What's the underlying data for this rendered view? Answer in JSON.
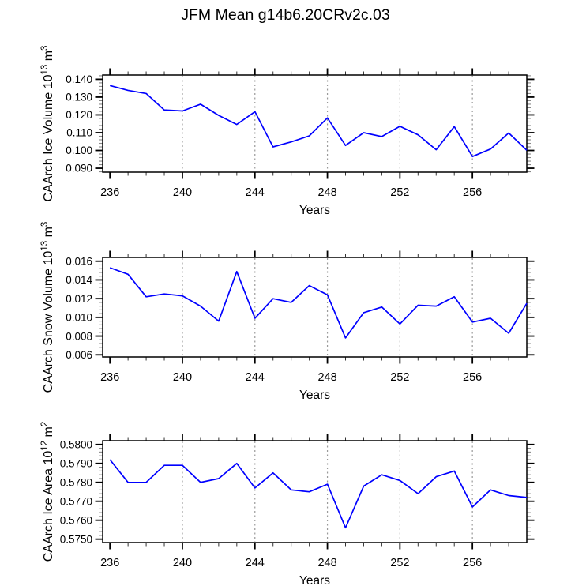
{
  "title": "JFM Mean g14b6.20CRv2c.03",
  "accent_color": "#0000ff",
  "grid_color": "#999999",
  "chart_data": [
    {
      "type": "line",
      "series_name": "CAArch Ice Volume",
      "ylabel": "CAArch Ice Volume 10¹³ m³",
      "ylabel_segments": [
        {
          "t": "CAArch Ice Volume 10"
        },
        {
          "t": "13",
          "sup": true
        },
        {
          "t": " m"
        },
        {
          "t": "3",
          "sup": true
        }
      ],
      "xlabel": "Years",
      "x": [
        236,
        237,
        238,
        239,
        240,
        241,
        242,
        243,
        244,
        245,
        246,
        247,
        248,
        249,
        250,
        251,
        252,
        253,
        254,
        255,
        256,
        257,
        258,
        259
      ],
      "values": [
        0.1365,
        0.1338,
        0.132,
        0.1228,
        0.1222,
        0.126,
        0.1197,
        0.1146,
        0.1218,
        0.102,
        0.1048,
        0.1082,
        0.1183,
        0.1028,
        0.11,
        0.1078,
        0.1136,
        0.1088,
        0.1004,
        0.1134,
        0.0966,
        0.1008,
        0.1098,
        0.1001
      ],
      "xlim": [
        235.6,
        259.0
      ],
      "ylim": [
        0.0878,
        0.1424
      ],
      "xticks": [
        236,
        240,
        244,
        248,
        252,
        256
      ],
      "xminor_step": 1,
      "grid_x": [
        240,
        244,
        248,
        252,
        256
      ],
      "ytick_values": [
        0.09,
        0.1,
        0.11,
        0.12,
        0.13,
        0.14
      ],
      "ytick_labels": [
        "0.090",
        "0.100",
        "0.110",
        "0.120",
        "0.130",
        "0.140"
      ],
      "yminor_step": 0.002
    },
    {
      "type": "line",
      "series_name": "CAArch Snow Volume",
      "ylabel": "CAArch Snow Volume 10¹³ m³",
      "ylabel_segments": [
        {
          "t": "CAArch Snow Volume 10"
        },
        {
          "t": "13",
          "sup": true
        },
        {
          "t": " m"
        },
        {
          "t": "3",
          "sup": true
        }
      ],
      "xlabel": "Years",
      "x": [
        236,
        237,
        238,
        239,
        240,
        241,
        242,
        243,
        244,
        245,
        246,
        247,
        248,
        249,
        250,
        251,
        252,
        253,
        254,
        255,
        256,
        257,
        258,
        259
      ],
      "values": [
        0.0153,
        0.0146,
        0.0122,
        0.0125,
        0.0123,
        0.0112,
        0.0096,
        0.0149,
        0.0099,
        0.012,
        0.0116,
        0.0134,
        0.0124,
        0.0078,
        0.0105,
        0.0111,
        0.0093,
        0.0113,
        0.0112,
        0.0122,
        0.0095,
        0.0099,
        0.0083,
        0.0115
      ],
      "xlim": [
        235.6,
        259.0
      ],
      "ylim": [
        0.00577,
        0.0164
      ],
      "xticks": [
        236,
        240,
        244,
        248,
        252,
        256
      ],
      "xminor_step": 1,
      "grid_x": [
        240,
        244,
        248,
        252,
        256
      ],
      "ytick_values": [
        0.006,
        0.008,
        0.01,
        0.012,
        0.014,
        0.016
      ],
      "ytick_labels": [
        "0.006",
        "0.008",
        "0.010",
        "0.012",
        "0.014",
        "0.016"
      ],
      "yminor_step": 0.0004
    },
    {
      "type": "line",
      "series_name": "CAArch Ice Area",
      "ylabel": "CAArch Ice Area 10¹² m²",
      "ylabel_segments": [
        {
          "t": "CAArch Ice Area 10"
        },
        {
          "t": "12",
          "sup": true
        },
        {
          "t": " m"
        },
        {
          "t": "2",
          "sup": true
        }
      ],
      "xlabel": "Years",
      "x": [
        236,
        237,
        238,
        239,
        240,
        241,
        242,
        243,
        244,
        245,
        246,
        247,
        248,
        249,
        250,
        251,
        252,
        253,
        254,
        255,
        256,
        257,
        258,
        259
      ],
      "values": [
        0.5792,
        0.578,
        0.578,
        0.5789,
        0.5789,
        0.578,
        0.5782,
        0.579,
        0.5777,
        0.5785,
        0.5776,
        0.5775,
        0.5779,
        0.5756,
        0.5778,
        0.5784,
        0.5781,
        0.5774,
        0.5783,
        0.5786,
        0.5767,
        0.5776,
        0.5773,
        0.5772
      ],
      "xlim": [
        235.6,
        259.0
      ],
      "ylim": [
        0.57482,
        0.5802
      ],
      "xticks": [
        236,
        240,
        244,
        248,
        252,
        256
      ],
      "xminor_step": 1,
      "grid_x": [
        240,
        244,
        248,
        252,
        256
      ],
      "ytick_values": [
        0.575,
        0.576,
        0.577,
        0.578,
        0.579,
        0.58
      ],
      "ytick_labels": [
        "0.5750",
        "0.5760",
        "0.5770",
        "0.5780",
        "0.5790",
        "0.5800"
      ],
      "yminor_step": 0.0002
    }
  ]
}
